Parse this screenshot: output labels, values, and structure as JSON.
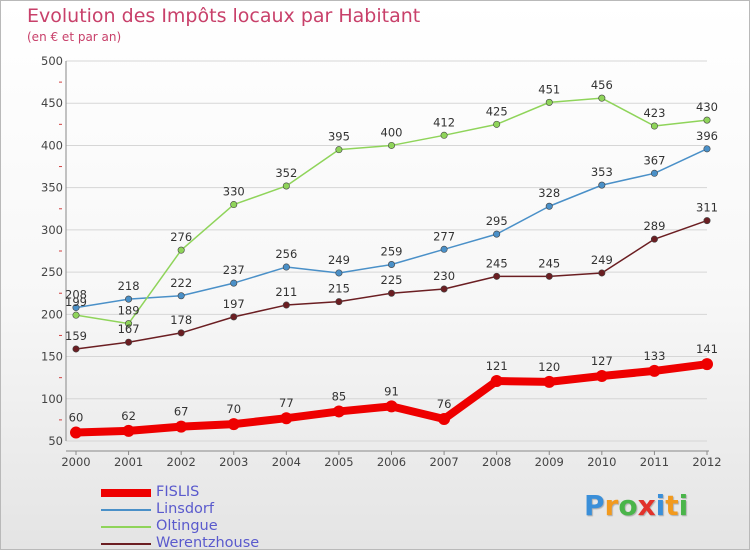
{
  "title": "Evolution des Impôts locaux par Habitant",
  "subtitle": "(en € et par an)",
  "logo": {
    "letters": [
      "P",
      "r",
      "o",
      "x",
      "i",
      "t",
      "i"
    ],
    "colors": [
      "#3a8fd9",
      "#f29a1e",
      "#4ab54a",
      "#e2322b",
      "#3a8fd9",
      "#f29a1e",
      "#4ab54a"
    ]
  },
  "chart_data": {
    "type": "line",
    "x": [
      "2000",
      "2001",
      "2002",
      "2003",
      "2004",
      "2005",
      "2006",
      "2007",
      "2008",
      "2009",
      "2010",
      "2011",
      "2012"
    ],
    "ylim": [
      50,
      500
    ],
    "yticks": [
      "50",
      "100",
      "150",
      "200",
      "250",
      "300",
      "350",
      "400",
      "450",
      "500"
    ],
    "grid": "horizontal",
    "legend_position": "bottom-left",
    "series": [
      {
        "name": "FISLIS",
        "color": "#ee0000",
        "emphasis": true,
        "values": [
          60,
          62,
          67,
          70,
          77,
          85,
          91,
          76,
          121,
          120,
          127,
          133,
          141
        ]
      },
      {
        "name": "Linsdorf",
        "color": "#4a90c8",
        "emphasis": false,
        "values": [
          208,
          218,
          222,
          237,
          256,
          249,
          259,
          277,
          295,
          328,
          353,
          367,
          396
        ]
      },
      {
        "name": "Oltingue",
        "color": "#8fd45a",
        "emphasis": false,
        "values": [
          199,
          189,
          276,
          330,
          352,
          395,
          400,
          412,
          425,
          451,
          456,
          423,
          430
        ]
      },
      {
        "name": "Werentzhouse",
        "color": "#6b1e22",
        "emphasis": false,
        "values": [
          159,
          167,
          178,
          197,
          211,
          215,
          225,
          230,
          245,
          245,
          249,
          289,
          311
        ]
      }
    ]
  }
}
